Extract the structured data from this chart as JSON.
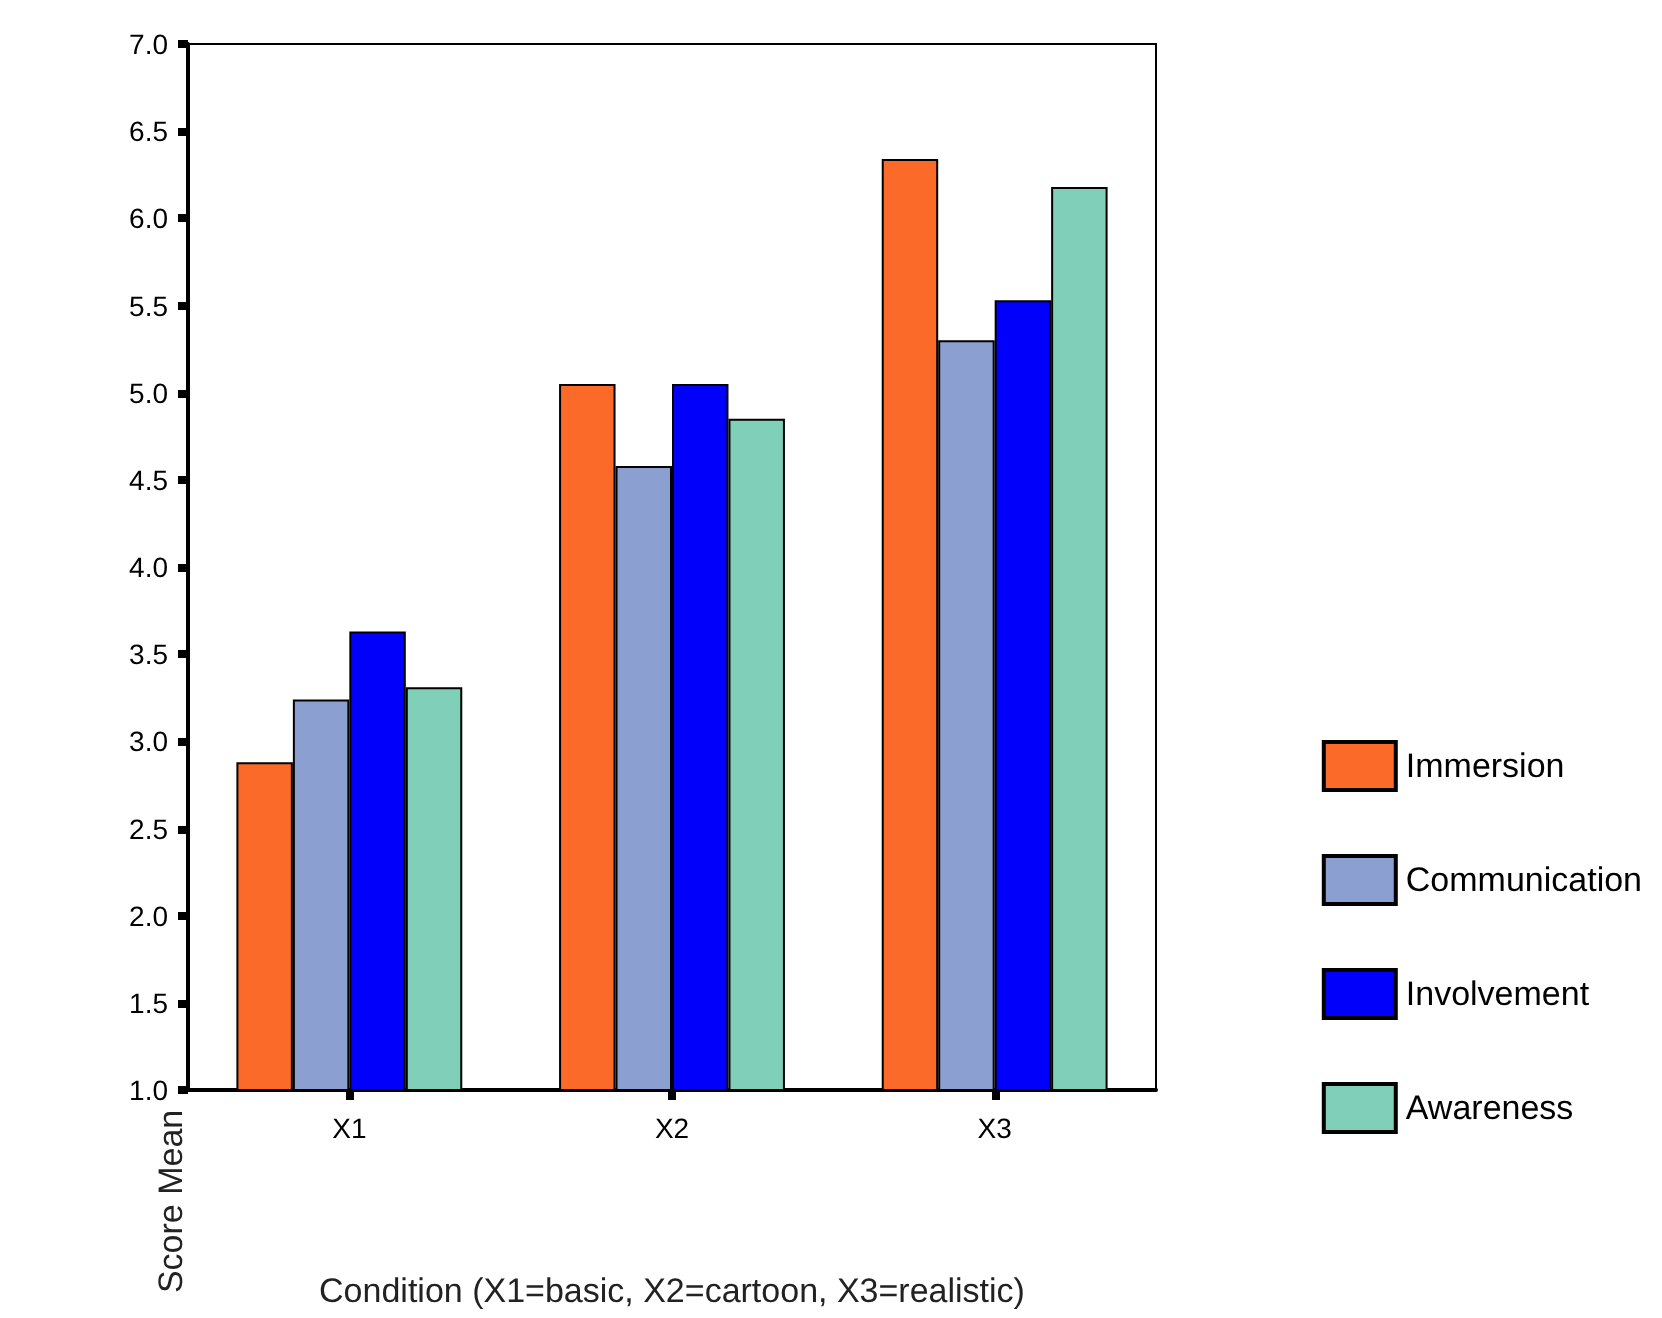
{
  "chart_data": {
    "type": "bar",
    "xlabel": "Condition (X1=basic, X2=cartoon, X3=realistic)",
    "ylabel": "Score Mean",
    "categories": [
      "X1",
      "X2",
      "X3"
    ],
    "series": [
      {
        "name": "Immersion",
        "color": "#fb6a29",
        "values": [
          2.88,
          5.05,
          6.34
        ]
      },
      {
        "name": "Communication",
        "color": "#8c9fd1",
        "values": [
          3.24,
          4.58,
          5.3
        ]
      },
      {
        "name": "Involvement",
        "color": "#0000fb",
        "values": [
          3.63,
          5.05,
          5.53
        ]
      },
      {
        "name": "Awareness",
        "color": "#7fcfb9",
        "values": [
          3.31,
          4.85,
          6.18
        ]
      }
    ],
    "ylim": [
      1.0,
      7.0
    ],
    "yticks": [
      {
        "value": 1,
        "label": "1.0"
      },
      {
        "value": 1.5,
        "label": "1.5"
      },
      {
        "value": 2,
        "label": "2.0"
      },
      {
        "value": 2.5,
        "label": "2.5"
      },
      {
        "value": 3,
        "label": "3.0"
      },
      {
        "value": 3.5,
        "label": "3.5"
      },
      {
        "value": 4,
        "label": "4.0"
      },
      {
        "value": 4.5,
        "label": "4.5"
      },
      {
        "value": 5,
        "label": "5.0"
      },
      {
        "value": 5.5,
        "label": "5.5"
      },
      {
        "value": 6,
        "label": "6.0"
      },
      {
        "value": 6.5,
        "label": "6.5"
      },
      {
        "value": 7,
        "label": "7.0"
      }
    ],
    "grid": false,
    "legend": "right"
  }
}
